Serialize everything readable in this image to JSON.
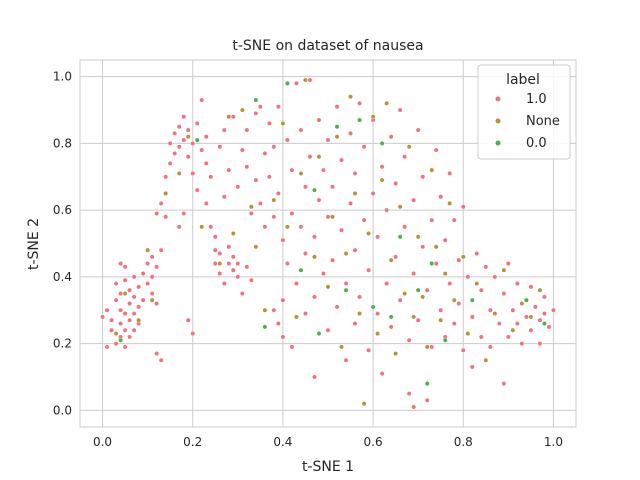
{
  "chart_data": {
    "type": "scatter",
    "title": "t-SNE on dataset of nausea",
    "xlabel": "t-SNE 1",
    "ylabel": "t-SNE 2",
    "xlim": [
      -0.05,
      1.05
    ],
    "ylim": [
      -0.05,
      1.05
    ],
    "xticks": [
      "0.0",
      "0.2",
      "0.4",
      "0.6",
      "0.8",
      "1.0"
    ],
    "yticks": [
      "0.0",
      "0.2",
      "0.4",
      "0.6",
      "0.8",
      "1.0"
    ],
    "grid": true,
    "legend": {
      "title": "label",
      "placement": "top-right"
    },
    "series": [
      {
        "name": "1.0",
        "color": "#f0717f",
        "points": [
          [
            0.0,
            0.28
          ],
          [
            0.01,
            0.19
          ],
          [
            0.01,
            0.3
          ],
          [
            0.02,
            0.24
          ],
          [
            0.02,
            0.27
          ],
          [
            0.03,
            0.2
          ],
          [
            0.03,
            0.33
          ],
          [
            0.03,
            0.38
          ],
          [
            0.04,
            0.22
          ],
          [
            0.04,
            0.26
          ],
          [
            0.04,
            0.3
          ],
          [
            0.04,
            0.35
          ],
          [
            0.04,
            0.44
          ],
          [
            0.05,
            0.19
          ],
          [
            0.05,
            0.24
          ],
          [
            0.05,
            0.29
          ],
          [
            0.05,
            0.39
          ],
          [
            0.05,
            0.43
          ],
          [
            0.06,
            0.22
          ],
          [
            0.06,
            0.27
          ],
          [
            0.06,
            0.32
          ],
          [
            0.06,
            0.36
          ],
          [
            0.07,
            0.24
          ],
          [
            0.07,
            0.29
          ],
          [
            0.07,
            0.34
          ],
          [
            0.07,
            0.4
          ],
          [
            0.08,
            0.26
          ],
          [
            0.08,
            0.31
          ],
          [
            0.08,
            0.37
          ],
          [
            0.09,
            0.33
          ],
          [
            0.09,
            0.41
          ],
          [
            0.1,
            0.38
          ],
          [
            0.1,
            0.44
          ],
          [
            0.11,
            0.35
          ],
          [
            0.11,
            0.4
          ],
          [
            0.11,
            0.46
          ],
          [
            0.12,
            0.32
          ],
          [
            0.12,
            0.43
          ],
          [
            0.12,
            0.17
          ],
          [
            0.13,
            0.15
          ],
          [
            0.13,
            0.48
          ],
          [
            0.12,
            0.59
          ],
          [
            0.13,
            0.62
          ],
          [
            0.14,
            0.58
          ],
          [
            0.14,
            0.7
          ],
          [
            0.15,
            0.74
          ],
          [
            0.15,
            0.8
          ],
          [
            0.16,
            0.77
          ],
          [
            0.16,
            0.83
          ],
          [
            0.17,
            0.79
          ],
          [
            0.17,
            0.85
          ],
          [
            0.17,
            0.55
          ],
          [
            0.18,
            0.59
          ],
          [
            0.18,
            0.81
          ],
          [
            0.18,
            0.88
          ],
          [
            0.19,
            0.76
          ],
          [
            0.19,
            0.84
          ],
          [
            0.19,
            0.27
          ],
          [
            0.2,
            0.23
          ],
          [
            0.2,
            0.8
          ],
          [
            0.2,
            0.71
          ],
          [
            0.21,
            0.86
          ],
          [
            0.21,
            0.66
          ],
          [
            0.22,
            0.93
          ],
          [
            0.22,
            0.78
          ],
          [
            0.23,
            0.74
          ],
          [
            0.23,
            0.82
          ],
          [
            0.23,
            0.62
          ],
          [
            0.24,
            0.7
          ],
          [
            0.24,
            0.55
          ],
          [
            0.25,
            0.48
          ],
          [
            0.25,
            0.52
          ],
          [
            0.25,
            0.44
          ],
          [
            0.26,
            0.47
          ],
          [
            0.26,
            0.41
          ],
          [
            0.26,
            0.79
          ],
          [
            0.27,
            0.84
          ],
          [
            0.27,
            0.64
          ],
          [
            0.27,
            0.38
          ],
          [
            0.28,
            0.44
          ],
          [
            0.28,
            0.49
          ],
          [
            0.28,
            0.72
          ],
          [
            0.29,
            0.42
          ],
          [
            0.29,
            0.46
          ],
          [
            0.29,
            0.88
          ],
          [
            0.3,
            0.4
          ],
          [
            0.3,
            0.44
          ],
          [
            0.3,
            0.67
          ],
          [
            0.31,
            0.78
          ],
          [
            0.31,
            0.35
          ],
          [
            0.32,
            0.43
          ],
          [
            0.32,
            0.73
          ],
          [
            0.32,
            0.84
          ],
          [
            0.33,
            0.39
          ],
          [
            0.33,
            0.59
          ],
          [
            0.34,
            0.89
          ],
          [
            0.34,
            0.69
          ],
          [
            0.35,
            0.91
          ],
          [
            0.35,
            0.62
          ],
          [
            0.36,
            0.77
          ],
          [
            0.36,
            0.55
          ],
          [
            0.37,
            0.7
          ],
          [
            0.37,
            0.86
          ],
          [
            0.38,
            0.3
          ],
          [
            0.38,
            0.58
          ],
          [
            0.38,
            0.79
          ],
          [
            0.39,
            0.26
          ],
          [
            0.39,
            0.65
          ],
          [
            0.39,
            0.91
          ],
          [
            0.4,
            0.22
          ],
          [
            0.4,
            0.33
          ],
          [
            0.4,
            0.51
          ],
          [
            0.41,
            0.81
          ],
          [
            0.41,
            0.44
          ],
          [
            0.42,
            0.19
          ],
          [
            0.42,
            0.59
          ],
          [
            0.42,
            0.72
          ],
          [
            0.43,
            0.98
          ],
          [
            0.43,
            0.38
          ],
          [
            0.44,
            0.55
          ],
          [
            0.44,
            0.84
          ],
          [
            0.45,
            0.29
          ],
          [
            0.45,
            0.47
          ],
          [
            0.45,
            0.67
          ],
          [
            0.46,
            0.99
          ],
          [
            0.46,
            0.76
          ],
          [
            0.47,
            0.34
          ],
          [
            0.47,
            0.52
          ],
          [
            0.47,
            0.1
          ],
          [
            0.48,
            0.63
          ],
          [
            0.48,
            0.87
          ],
          [
            0.49,
            0.41
          ],
          [
            0.49,
            0.72
          ],
          [
            0.5,
            0.24
          ],
          [
            0.5,
            0.58
          ],
          [
            0.5,
            0.81
          ],
          [
            0.51,
            0.45
          ],
          [
            0.51,
            0.67
          ],
          [
            0.52,
            0.31
          ],
          [
            0.52,
            0.91
          ],
          [
            0.53,
            0.54
          ],
          [
            0.53,
            0.75
          ],
          [
            0.54,
            0.38
          ],
          [
            0.54,
            0.15
          ],
          [
            0.55,
            0.62
          ],
          [
            0.55,
            0.83
          ],
          [
            0.56,
            0.26
          ],
          [
            0.56,
            0.48
          ],
          [
            0.56,
            0.71
          ],
          [
            0.57,
            0.92
          ],
          [
            0.57,
            0.34
          ],
          [
            0.58,
            0.57
          ],
          [
            0.58,
            0.79
          ],
          [
            0.59,
            0.18
          ],
          [
            0.59,
            0.42
          ],
          [
            0.6,
            0.65
          ],
          [
            0.6,
            0.87
          ],
          [
            0.61,
            0.29
          ],
          [
            0.61,
            0.52
          ],
          [
            0.62,
            0.73
          ],
          [
            0.62,
            0.11
          ],
          [
            0.63,
            0.38
          ],
          [
            0.63,
            0.6
          ],
          [
            0.64,
            0.82
          ],
          [
            0.64,
            0.25
          ],
          [
            0.65,
            0.46
          ],
          [
            0.65,
            0.68
          ],
          [
            0.66,
            0.9
          ],
          [
            0.66,
            0.33
          ],
          [
            0.67,
            0.55
          ],
          [
            0.67,
            0.76
          ],
          [
            0.68,
            0.05
          ],
          [
            0.68,
            0.21
          ],
          [
            0.69,
            0.41
          ],
          [
            0.69,
            0.63
          ],
          [
            0.69,
            0.01
          ],
          [
            0.7,
            0.84
          ],
          [
            0.7,
            0.27
          ],
          [
            0.71,
            0.49
          ],
          [
            0.71,
            0.7
          ],
          [
            0.72,
            0.03
          ],
          [
            0.72,
            0.36
          ],
          [
            0.73,
            0.57
          ],
          [
            0.73,
            0.19
          ],
          [
            0.74,
            0.78
          ],
          [
            0.74,
            0.44
          ],
          [
            0.75,
            0.3
          ],
          [
            0.75,
            0.64
          ],
          [
            0.76,
            0.22
          ],
          [
            0.76,
            0.51
          ],
          [
            0.77,
            0.71
          ],
          [
            0.77,
            0.38
          ],
          [
            0.78,
            0.26
          ],
          [
            0.78,
            0.57
          ],
          [
            0.79,
            0.45
          ],
          [
            0.79,
            0.32
          ],
          [
            0.8,
            0.18
          ],
          [
            0.8,
            0.61
          ],
          [
            0.81,
            0.4
          ],
          [
            0.82,
            0.28
          ],
          [
            0.82,
            0.13
          ],
          [
            0.83,
            0.47
          ],
          [
            0.84,
            0.22
          ],
          [
            0.84,
            0.36
          ],
          [
            0.85,
            0.43
          ],
          [
            0.86,
            0.3
          ],
          [
            0.86,
            0.19
          ],
          [
            0.87,
            0.4
          ],
          [
            0.88,
            0.26
          ],
          [
            0.89,
            0.35
          ],
          [
            0.89,
            0.08
          ],
          [
            0.9,
            0.44
          ],
          [
            0.9,
            0.22
          ],
          [
            0.91,
            0.3
          ],
          [
            0.92,
            0.38
          ],
          [
            0.92,
            0.26
          ],
          [
            0.93,
            0.2
          ],
          [
            0.94,
            0.33
          ],
          [
            0.94,
            0.28
          ],
          [
            0.95,
            0.37
          ],
          [
            0.95,
            0.24
          ],
          [
            0.96,
            0.31
          ],
          [
            0.97,
            0.27
          ],
          [
            0.97,
            0.2
          ],
          [
            0.98,
            0.34
          ],
          [
            0.98,
            0.29
          ],
          [
            0.99,
            0.25
          ],
          [
            1.0,
            0.3
          ]
        ]
      },
      {
        "name": "None",
        "color": "#b8923a",
        "points": [
          [
            0.03,
            0.23
          ],
          [
            0.05,
            0.35
          ],
          [
            0.08,
            0.27
          ],
          [
            0.1,
            0.48
          ],
          [
            0.11,
            0.33
          ],
          [
            0.14,
            0.65
          ],
          [
            0.17,
            0.71
          ],
          [
            0.19,
            0.82
          ],
          [
            0.21,
            0.81
          ],
          [
            0.22,
            0.55
          ],
          [
            0.26,
            0.44
          ],
          [
            0.28,
            0.88
          ],
          [
            0.29,
            0.53
          ],
          [
            0.31,
            0.9
          ],
          [
            0.33,
            0.61
          ],
          [
            0.34,
            0.49
          ],
          [
            0.36,
            0.3
          ],
          [
            0.38,
            0.63
          ],
          [
            0.4,
            0.86
          ],
          [
            0.41,
            0.55
          ],
          [
            0.43,
            0.28
          ],
          [
            0.44,
            0.71
          ],
          [
            0.45,
            0.99
          ],
          [
            0.47,
            0.46
          ],
          [
            0.48,
            0.76
          ],
          [
            0.5,
            0.37
          ],
          [
            0.51,
            0.58
          ],
          [
            0.52,
            0.82
          ],
          [
            0.53,
            0.19
          ],
          [
            0.54,
            0.47
          ],
          [
            0.55,
            0.94
          ],
          [
            0.56,
            0.65
          ],
          [
            0.57,
            0.29
          ],
          [
            0.58,
            0.02
          ],
          [
            0.59,
            0.53
          ],
          [
            0.6,
            0.88
          ],
          [
            0.61,
            0.23
          ],
          [
            0.62,
            0.69
          ],
          [
            0.63,
            0.92
          ],
          [
            0.64,
            0.45
          ],
          [
            0.65,
            0.17
          ],
          [
            0.66,
            0.61
          ],
          [
            0.67,
            0.35
          ],
          [
            0.68,
            0.79
          ],
          [
            0.69,
            0.28
          ],
          [
            0.7,
            0.52
          ],
          [
            0.71,
            0.34
          ],
          [
            0.72,
            0.19
          ],
          [
            0.73,
            0.72
          ],
          [
            0.74,
            0.49
          ],
          [
            0.75,
            0.27
          ],
          [
            0.76,
            0.41
          ],
          [
            0.77,
            0.62
          ],
          [
            0.78,
            0.33
          ],
          [
            0.8,
            0.46
          ],
          [
            0.81,
            0.23
          ],
          [
            0.83,
            0.38
          ],
          [
            0.85,
            0.15
          ],
          [
            0.87,
            0.29
          ],
          [
            0.89,
            0.42
          ],
          [
            0.91,
            0.24
          ],
          [
            0.93,
            0.32
          ],
          [
            0.95,
            0.28
          ],
          [
            0.97,
            0.36
          ]
        ]
      },
      {
        "name": "0.0",
        "color": "#4daf4a",
        "points": [
          [
            0.04,
            0.21
          ],
          [
            0.21,
            0.81
          ],
          [
            0.34,
            0.93
          ],
          [
            0.36,
            0.25
          ],
          [
            0.41,
            0.98
          ],
          [
            0.44,
            0.42
          ],
          [
            0.47,
            0.66
          ],
          [
            0.48,
            0.23
          ],
          [
            0.52,
            0.85
          ],
          [
            0.54,
            0.36
          ],
          [
            0.57,
            0.87
          ],
          [
            0.6,
            0.31
          ],
          [
            0.62,
            0.8
          ],
          [
            0.64,
            0.28
          ],
          [
            0.66,
            0.52
          ],
          [
            0.7,
            0.36
          ],
          [
            0.72,
            0.08
          ],
          [
            0.73,
            0.44
          ],
          [
            0.76,
            0.21
          ],
          [
            0.82,
            0.33
          ],
          [
            0.94,
            0.33
          ],
          [
            0.98,
            0.26
          ]
        ]
      }
    ]
  }
}
